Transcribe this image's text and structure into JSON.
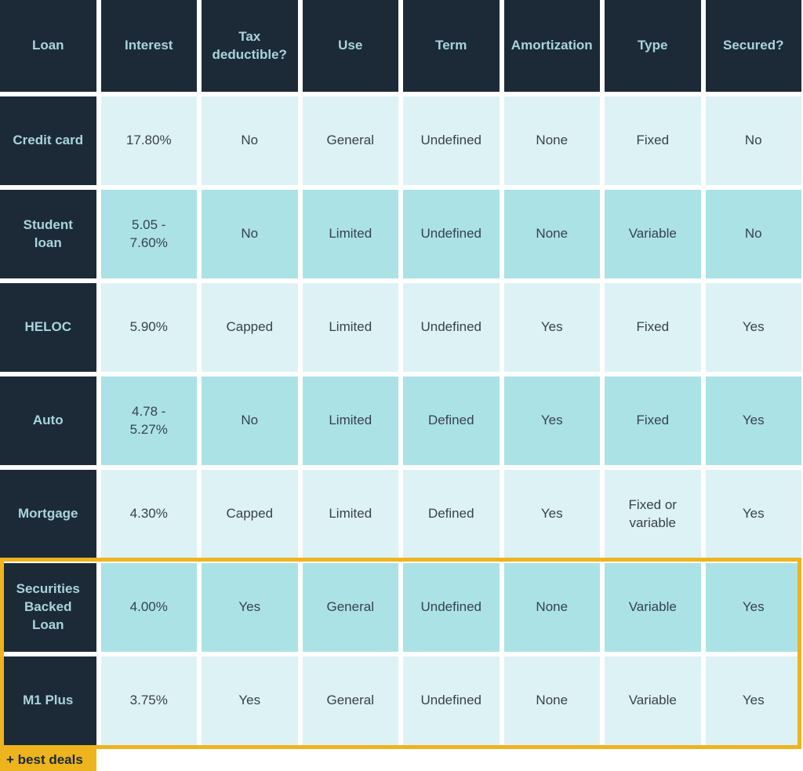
{
  "chart_data": {
    "type": "table",
    "columns": [
      "Loan",
      "Interest",
      "Tax deductible?",
      "Use",
      "Term",
      "Amortization",
      "Type",
      "Secured?"
    ],
    "rows": [
      {
        "loan": "Credit card",
        "interest": "17.80%",
        "tax_deductible": "No",
        "use": "General",
        "term": "Undefined",
        "amortization": "None",
        "type": "Fixed",
        "secured": "No"
      },
      {
        "loan": "Student loan",
        "interest": "5.05 -\n7.60%",
        "tax_deductible": "No",
        "use": "Limited",
        "term": "Undefined",
        "amortization": "None",
        "type": "Variable",
        "secured": "No"
      },
      {
        "loan": "HELOC",
        "interest": "5.90%",
        "tax_deductible": "Capped",
        "use": "Limited",
        "term": "Undefined",
        "amortization": "Yes",
        "type": "Fixed",
        "secured": "Yes"
      },
      {
        "loan": "Auto",
        "interest": "4.78 -\n5.27%",
        "tax_deductible": "No",
        "use": "Limited",
        "term": "Defined",
        "amortization": "Yes",
        "type": "Fixed",
        "secured": "Yes"
      },
      {
        "loan": "Mortgage",
        "interest": "4.30%",
        "tax_deductible": "Capped",
        "use": "Limited",
        "term": "Defined",
        "amortization": "Yes",
        "type": "Fixed or variable",
        "secured": "Yes"
      },
      {
        "loan": "Securities Backed Loan",
        "interest": "4.00%",
        "tax_deductible": "Yes",
        "use": "General",
        "term": "Undefined",
        "amortization": "None",
        "type": "Variable",
        "secured": "Yes"
      },
      {
        "loan": "M1 Plus",
        "interest": "3.75%",
        "tax_deductible": "Yes",
        "use": "General",
        "term": "Undefined",
        "amortization": "None",
        "type": "Variable",
        "secured": "Yes"
      }
    ],
    "highlighted_rows": [
      "Securities Backed Loan",
      "M1 Plus"
    ],
    "highlight_label": "+ best deals",
    "legend_position": "bottom-left"
  },
  "colors": {
    "header_bg": "#1c2a38",
    "header_text": "#a8d4da",
    "cell_light_bg": "#ddf2f4",
    "cell_medium_bg": "#abe2e6",
    "cell_text": "#37424e",
    "highlight_gold": "#edb41e"
  }
}
